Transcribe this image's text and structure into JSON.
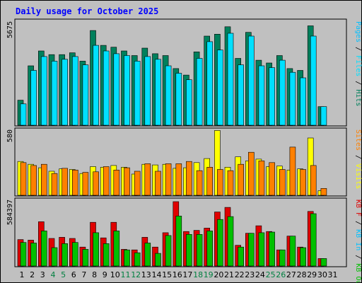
{
  "title": "Daily usage for October 2025",
  "colors": {
    "hits": "#00805c",
    "files": "#00e0ff",
    "pages": "#00c0ff",
    "visits": "#ffff00",
    "sites": "#ff8000",
    "kb_in": "#e00000",
    "kb_out": "#00c000",
    "weekday_label": "#000000",
    "weekend_label": "#008040"
  },
  "chart_data": [
    {
      "type": "bar",
      "title": "",
      "ylabel_max": "5675",
      "legend": [
        "Pages",
        "Files",
        "Hits"
      ],
      "legend_placement": "right",
      "x": [
        1,
        2,
        3,
        4,
        5,
        6,
        7,
        8,
        9,
        10,
        11,
        12,
        13,
        14,
        15,
        16,
        17,
        18,
        19,
        20,
        21,
        22,
        23,
        24,
        25,
        26,
        27,
        28,
        29,
        30,
        31
      ],
      "weekend_days": [
        4,
        5,
        11,
        12,
        18,
        19,
        25,
        26
      ],
      "ylim": [
        0,
        5675
      ],
      "series": [
        {
          "name": "Hits",
          "values": [
            1350,
            3200,
            4000,
            3800,
            3800,
            3900,
            3450,
            5100,
            4300,
            4200,
            4000,
            3750,
            4150,
            3850,
            3750,
            3050,
            2700,
            3950,
            4800,
            4900,
            5300,
            3600,
            5000,
            3500,
            3350,
            3750,
            3050,
            2950,
            5350,
            1000,
            0
          ]
        },
        {
          "name": "Files",
          "values": [
            1150,
            2950,
            3700,
            3450,
            3550,
            3700,
            3250,
            4300,
            4000,
            3850,
            3750,
            3450,
            3700,
            3550,
            3200,
            2800,
            2450,
            3600,
            4500,
            4050,
            4950,
            3250,
            4800,
            3200,
            3100,
            3500,
            2850,
            2550,
            4800,
            1000,
            0
          ]
        }
      ]
    },
    {
      "type": "bar",
      "title": "",
      "ylabel_max": "580",
      "legend": [
        "Visits",
        "Sites"
      ],
      "legend_placement": "right",
      "x": [
        1,
        2,
        3,
        4,
        5,
        6,
        7,
        8,
        9,
        10,
        11,
        12,
        13,
        14,
        15,
        16,
        17,
        18,
        19,
        20,
        21,
        22,
        23,
        24,
        25,
        26,
        27,
        28,
        29,
        30,
        31
      ],
      "ylim": [
        0,
        580
      ],
      "series": [
        {
          "name": "Visits",
          "values": [
            295,
            270,
            240,
            210,
            230,
            225,
            190,
            250,
            245,
            260,
            245,
            185,
            270,
            265,
            270,
            235,
            240,
            285,
            320,
            565,
            245,
            335,
            300,
            315,
            250,
            255,
            220,
            230,
            500,
            40,
            0
          ]
        },
        {
          "name": "Sites",
          "values": [
            285,
            260,
            270,
            190,
            235,
            220,
            200,
            205,
            250,
            220,
            240,
            210,
            275,
            210,
            275,
            275,
            295,
            215,
            245,
            225,
            215,
            270,
            375,
            300,
            285,
            225,
            420,
            225,
            260,
            60,
            0
          ]
        }
      ]
    },
    {
      "type": "bar",
      "title": "",
      "ylabel_max": "584397",
      "legend": [
        "KB F",
        "KB In",
        "KB Out"
      ],
      "legend_placement": "right",
      "x": [
        1,
        2,
        3,
        4,
        5,
        6,
        7,
        8,
        9,
        10,
        11,
        12,
        13,
        14,
        15,
        16,
        17,
        18,
        19,
        20,
        21,
        22,
        23,
        24,
        25,
        26,
        27,
        28,
        29,
        30,
        31
      ],
      "ylim": [
        0,
        584397
      ],
      "series": [
        {
          "name": "KB In",
          "values": [
            230000,
            225000,
            385000,
            240000,
            250000,
            240000,
            165000,
            380000,
            245000,
            380000,
            145000,
            140000,
            250000,
            165000,
            290000,
            560000,
            300000,
            310000,
            330000,
            470000,
            510000,
            180000,
            285000,
            350000,
            300000,
            140000,
            260000,
            165000,
            475000,
            65000,
            0
          ]
        },
        {
          "name": "KB Out",
          "values": [
            205000,
            200000,
            305000,
            160000,
            195000,
            205000,
            145000,
            290000,
            195000,
            305000,
            140000,
            115000,
            200000,
            110000,
            265000,
            435000,
            275000,
            275000,
            305000,
            405000,
            430000,
            165000,
            285000,
            290000,
            295000,
            140000,
            260000,
            160000,
            455000,
            65000,
            0
          ]
        }
      ]
    }
  ],
  "day_labels": [
    "1",
    "2",
    "3",
    "4",
    "5",
    "6",
    "7",
    "8",
    "9",
    "10",
    "11",
    "12",
    "13",
    "14",
    "15",
    "16",
    "17",
    "18",
    "19",
    "20",
    "21",
    "22",
    "23",
    "24",
    "25",
    "26",
    "27",
    "28",
    "29",
    "30",
    "31"
  ]
}
